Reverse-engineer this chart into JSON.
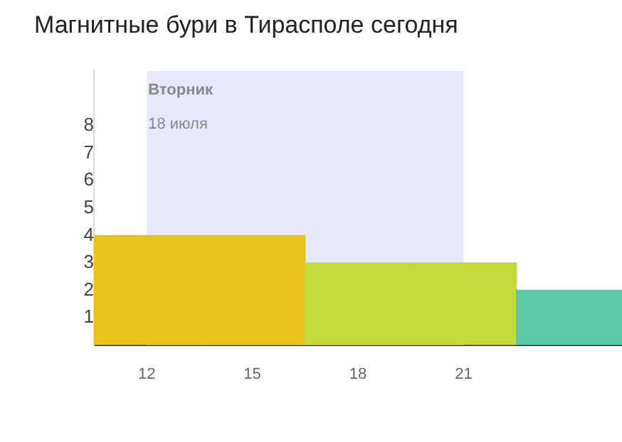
{
  "chart_data": {
    "type": "bar",
    "title": "Магнитные бури в Тирасполе сегодня",
    "categories": [
      "12",
      "15",
      "18",
      "21",
      null
    ],
    "values": [
      4,
      4,
      3,
      3,
      2
    ],
    "colors": [
      "#e8c31c",
      "#e8c31c",
      "#c5d93a",
      "#c5d93a",
      "#5cc8a8"
    ],
    "ylim": [
      0,
      10
    ],
    "yticks": [
      1,
      2,
      3,
      4,
      5,
      6,
      7,
      8
    ],
    "bands": [
      {
        "axis": "x",
        "from": "12",
        "to": "21",
        "label": "Вторник",
        "color": "#e6e8fc"
      }
    ],
    "annotations": [
      "18 июля"
    ],
    "grid": false,
    "legend": false
  }
}
